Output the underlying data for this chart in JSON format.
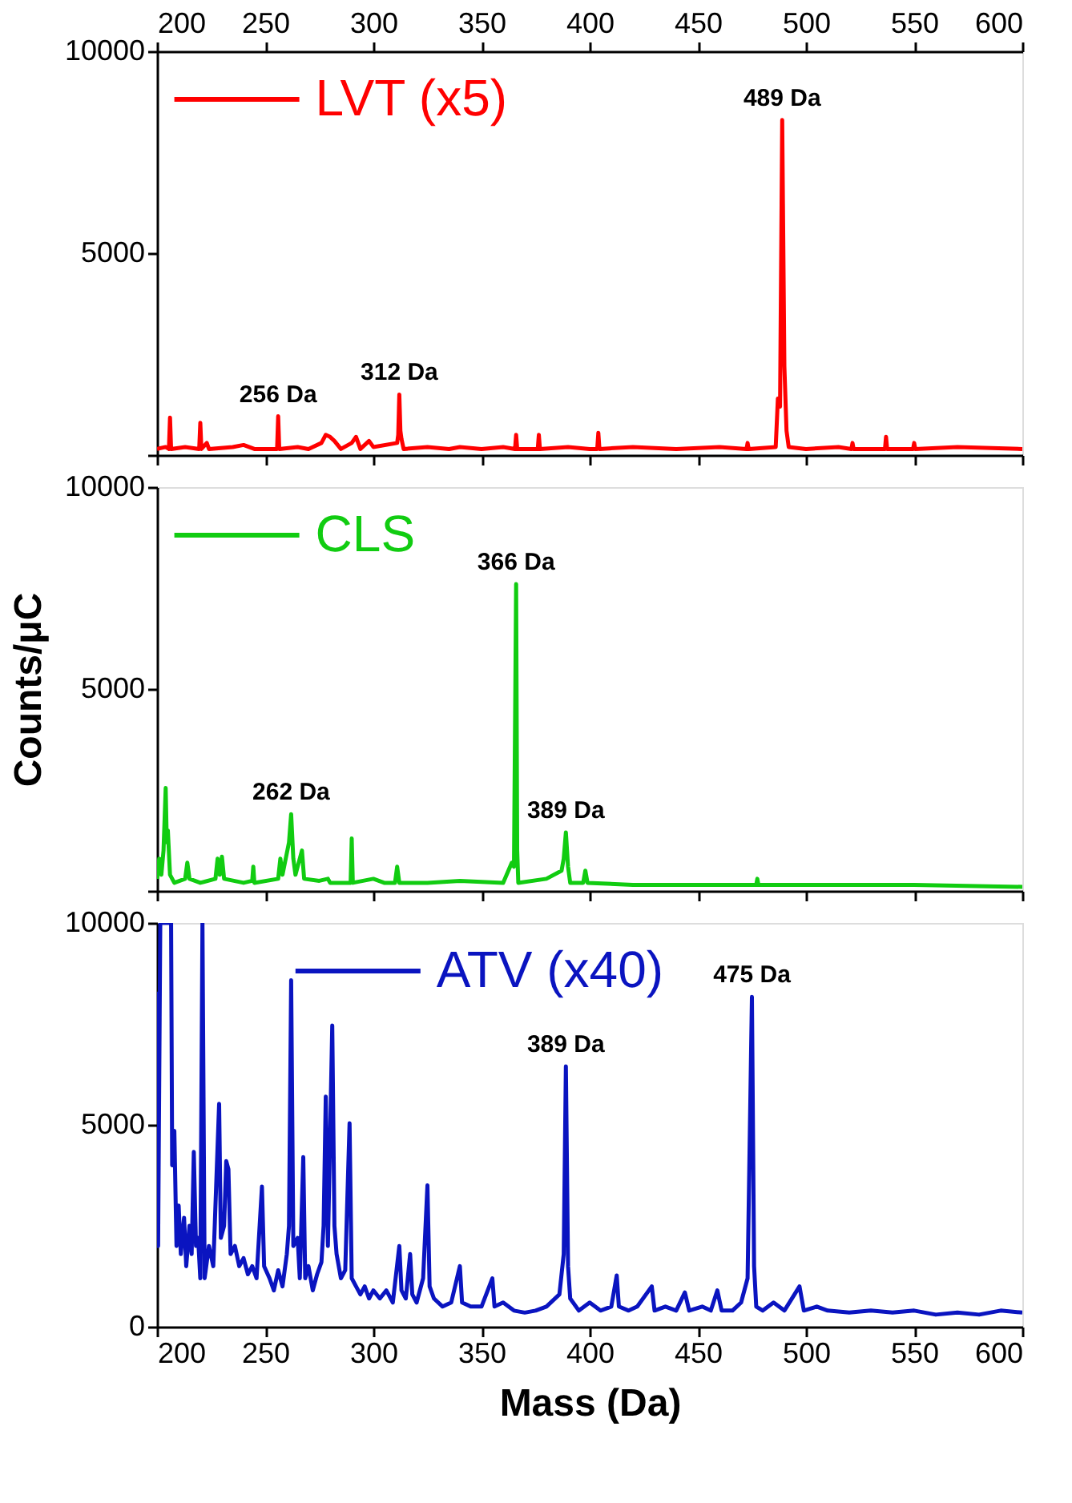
{
  "chart_data": [
    {
      "type": "line",
      "legend": "top left",
      "tick_labels": "y",
      "xlim": [
        200,
        600
      ],
      "xticks": [
        200,
        250,
        300,
        350,
        400,
        450,
        500,
        550,
        600
      ],
      "x2lim": [
        200,
        600
      ],
      "x2ticks": [
        200,
        250,
        300,
        350,
        400,
        450,
        500,
        550,
        600
      ],
      "ylim": [
        0,
        10000
      ],
      "yticks": [
        {
          "value": 0,
          "label": null
        },
        5000,
        10000
      ],
      "annotations": [
        {
          "text": "256 Da",
          "x": 256,
          "y": 960
        },
        {
          "text": "312 Da",
          "x": 312,
          "y": 1500
        },
        {
          "text": "489 Da",
          "x": 489,
          "y": 8300
        }
      ],
      "series": [
        {
          "name": "LVT (x5)",
          "color": "#ff0000",
          "x": [
            200,
            204,
            205.5,
            206,
            206.5,
            213,
            219.5,
            220,
            220.5,
            223,
            224,
            235,
            240,
            245,
            255.5,
            256,
            256.5,
            265,
            270,
            276,
            278,
            280,
            282,
            285,
            290,
            292,
            294,
            298,
            300,
            311,
            311.5,
            312,
            312.5,
            313,
            314,
            325,
            335,
            340,
            350,
            360,
            365.5,
            366,
            366.5,
            376,
            376.5,
            377,
            390,
            400,
            403.5,
            404,
            404.5,
            420,
            440,
            460,
            472.5,
            473,
            473.5,
            486,
            487,
            488,
            489,
            490,
            491,
            492,
            500,
            515,
            521,
            521.5,
            522,
            536.5,
            537,
            537.5,
            549.5,
            550,
            550.5,
            570,
            600
          ],
          "values": [
            150,
            200,
            150,
            930,
            150,
            200,
            150,
            800,
            150,
            300,
            150,
            200,
            250,
            150,
            150,
            960,
            150,
            200,
            150,
            300,
            500,
            450,
            350,
            150,
            300,
            450,
            150,
            350,
            200,
            300,
            500,
            1500,
            600,
            400,
            150,
            200,
            150,
            200,
            150,
            200,
            150,
            500,
            150,
            150,
            500,
            150,
            200,
            150,
            150,
            550,
            150,
            200,
            150,
            200,
            150,
            300,
            150,
            200,
            1400,
            1200,
            8300,
            2200,
            600,
            200,
            150,
            200,
            150,
            300,
            150,
            150,
            450,
            150,
            150,
            300,
            150,
            200,
            150
          ]
        }
      ]
    },
    {
      "type": "line",
      "legend": "top left",
      "tick_labels": "y",
      "xlim": [
        200,
        600
      ],
      "xticks": [
        200,
        250,
        300,
        350,
        400,
        450,
        500,
        550,
        600
      ],
      "ylim": [
        0,
        10000
      ],
      "yticks": [
        {
          "value": 0,
          "label": null
        },
        5000,
        10000
      ],
      "ylabel": "Counts/μC",
      "annotations": [
        {
          "text": "262 Da",
          "x": 262,
          "y": 1900
        },
        {
          "text": "366 Da",
          "x": 366,
          "y": 7600
        },
        {
          "text": "389 Da",
          "x": 389,
          "y": 1450
        }
      ],
      "series": [
        {
          "name": "CLS",
          "color": "#11cc11",
          "x": [
            200,
            201,
            202,
            203,
            204,
            204.5,
            205,
            206,
            208,
            213,
            214,
            215,
            220,
            227,
            228,
            229,
            230,
            231,
            240,
            244,
            244.5,
            245,
            256,
            257,
            258,
            261,
            262,
            263,
            264,
            266,
            267,
            268,
            275,
            279,
            280,
            289.5,
            290,
            290.5,
            300,
            305,
            310,
            311,
            312,
            325,
            340,
            360,
            364,
            365,
            366,
            366.5,
            367,
            380,
            387,
            388,
            389,
            390,
            391,
            397,
            398,
            399,
            420,
            450,
            477,
            477.5,
            478,
            500,
            550,
            600
          ],
          "values": [
            300,
            800,
            400,
            1000,
            2550,
            1200,
            1500,
            400,
            200,
            300,
            700,
            300,
            200,
            300,
            800,
            400,
            850,
            300,
            200,
            250,
            600,
            200,
            300,
            800,
            400,
            1200,
            1900,
            800,
            400,
            800,
            1000,
            300,
            250,
            300,
            200,
            200,
            1300,
            200,
            300,
            200,
            200,
            600,
            200,
            200,
            250,
            200,
            700,
            600,
            7600,
            1000,
            200,
            300,
            500,
            800,
            1450,
            600,
            200,
            200,
            500,
            200,
            150,
            150,
            150,
            300,
            150,
            150,
            150,
            100
          ]
        }
      ]
    },
    {
      "type": "line",
      "legend": "top",
      "xlim": [
        200,
        600
      ],
      "xticks": [
        200,
        250,
        300,
        350,
        400,
        450,
        500,
        550,
        600
      ],
      "ylim": [
        0,
        10000
      ],
      "yticks": [
        0,
        5000,
        10000
      ],
      "xlabel": "Mass (Da)",
      "annotations": [
        {
          "text": "389 Da",
          "x": 389,
          "y": 6450
        },
        {
          "text": "475 Da",
          "x": 475,
          "y": 8170
        }
      ],
      "series": [
        {
          "name": "ATV (x40)",
          "color": "#0a14c0",
          "x": [
            200,
            200.5,
            201.5,
            206.5,
            207,
            208,
            209,
            210,
            211,
            212.5,
            213.5,
            215,
            216,
            217,
            218,
            219,
            220,
            221,
            222,
            224,
            226,
            228.7,
            229.5,
            231,
            232,
            233,
            234,
            236,
            238,
            240,
            242,
            244,
            246,
            248.5,
            249.5,
            252,
            254,
            256,
            258,
            260,
            261,
            262,
            263,
            265,
            266,
            267.6,
            268.5,
            270,
            272,
            274,
            276,
            277,
            278,
            279,
            281,
            282,
            283,
            285,
            287,
            289,
            290,
            292,
            294,
            296,
            298,
            300,
            303,
            306,
            309,
            312,
            313,
            315,
            317,
            318,
            320,
            323,
            325,
            326,
            328,
            332,
            336,
            340,
            341,
            345,
            350,
            355,
            356,
            360,
            365,
            370,
            375,
            380,
            386,
            388,
            389,
            390,
            391,
            395,
            400,
            405,
            410,
            412.5,
            413.5,
            418,
            422,
            428.7,
            430,
            435,
            440,
            444,
            446,
            452,
            456,
            459,
            461,
            466,
            470,
            473,
            475,
            476,
            477,
            480,
            485,
            490,
            497,
            499,
            505,
            510,
            520,
            530,
            540,
            550,
            560,
            570,
            580,
            590,
            600
          ],
          "values": [
            8300,
            2000,
            10000,
            10000,
            4000,
            4850,
            2000,
            3000,
            1800,
            2700,
            1500,
            2500,
            1800,
            4330,
            2000,
            2200,
            1200,
            10000,
            1200,
            2000,
            1500,
            5520,
            2200,
            2500,
            4100,
            3900,
            1800,
            2000,
            1500,
            1700,
            1300,
            1500,
            1200,
            3470,
            1500,
            1200,
            900,
            1400,
            1000,
            1800,
            2500,
            8580,
            2000,
            2200,
            1200,
            4200,
            1200,
            1500,
            900,
            1300,
            1600,
            2500,
            5700,
            2000,
            7460,
            2500,
            1800,
            1200,
            1400,
            5040,
            1200,
            1000,
            800,
            1000,
            700,
            900,
            700,
            900,
            600,
            2000,
            900,
            700,
            1800,
            800,
            600,
            1200,
            3500,
            1000,
            700,
            500,
            600,
            1500,
            600,
            500,
            500,
            1200,
            500,
            600,
            400,
            350,
            400,
            500,
            800,
            1800,
            6450,
            1500,
            700,
            400,
            600,
            400,
            500,
            1270,
            500,
            400,
            500,
            1000,
            400,
            500,
            400,
            850,
            400,
            500,
            400,
            900,
            400,
            400,
            600,
            1200,
            8170,
            1500,
            500,
            400,
            600,
            400,
            1000,
            400,
            500,
            400,
            350,
            400,
            350,
            400,
            300,
            350,
            300,
            400,
            350
          ]
        }
      ]
    }
  ]
}
